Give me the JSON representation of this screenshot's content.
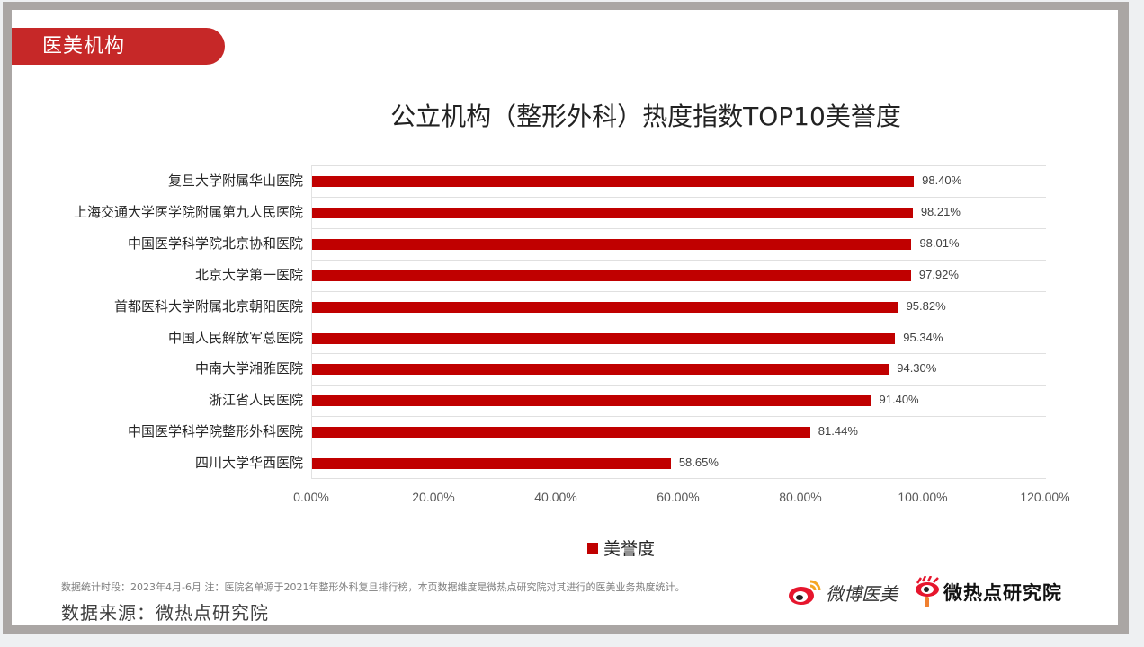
{
  "header": {
    "badge": "医美机构"
  },
  "chart_data": {
    "type": "bar",
    "orientation": "horizontal",
    "title": "公立机构（整形外科）热度指数TOP10美誉度",
    "categories": [
      "复旦大学附属华山医院",
      "上海交通大学医学院附属第九人民医院",
      "中国医学科学院北京协和医院",
      "北京大学第一医院",
      "首都医科大学附属北京朝阳医院",
      "中国人民解放军总医院",
      "中南大学湘雅医院",
      "浙江省人民医院",
      "中国医学科学院整形外科医院",
      "四川大学华西医院"
    ],
    "series": [
      {
        "name": "美誉度",
        "color": "#c00000",
        "values": [
          98.4,
          98.21,
          98.01,
          97.92,
          95.82,
          95.34,
          94.3,
          91.4,
          81.44,
          58.65
        ],
        "labels": [
          "98.40%",
          "98.21%",
          "98.01%",
          "97.92%",
          "95.82%",
          "95.34%",
          "94.30%",
          "91.40%",
          "81.44%",
          "58.65%"
        ]
      }
    ],
    "xlabel": "",
    "ylabel": "",
    "xlim": [
      0,
      120
    ],
    "x_ticks": [
      "0.00%",
      "20.00%",
      "40.00%",
      "60.00%",
      "80.00%",
      "100.00%",
      "120.00%"
    ],
    "grid": "horizontal",
    "legend_position": "bottom"
  },
  "footer": {
    "note": "数据统计时段：2023年4月-6月    注：医院名单源于2021年整形外科复旦排行榜，本页数据维度是微热点研究院对其进行的医美业务热度统计。",
    "source": "数据来源：微热点研究院",
    "logo1": "微博医美",
    "logo2": "微热点研究院"
  }
}
